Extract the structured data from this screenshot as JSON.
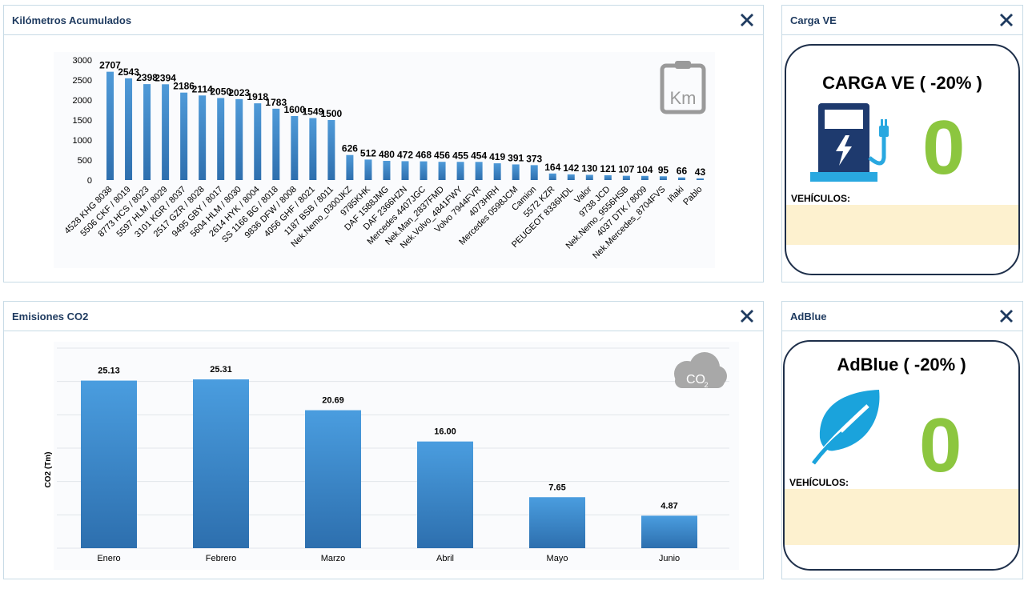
{
  "km_panel": {
    "title": "Kilómetros Acumulados",
    "icon_label": "Km",
    "chart_data": {
      "type": "bar",
      "categories": [
        "4528 KHG 8038",
        "5506 CKF / 8019",
        "8773 HCS / 8023",
        "5597 HLM / 8029",
        "3101 KGR / 8037",
        "2517 GZR / 8028",
        "9495 GBY / 8017",
        "5604 HLM / 8030",
        "2614 HYK / 8004",
        "SS 1166 BG / 8018",
        "9836 DFW / 8008",
        "4056 GHF / 8021",
        "1187 BSB / 8011",
        "Nek.Nemo_0300JKZ",
        "9785KHK",
        "DAF 1588JMG",
        "DAF 2366HZN",
        "Mercedes 4407JGC",
        "Nek.Man_2837FMD",
        "Nek.Volvo_4841FWY",
        "Volvo 7944FVR",
        "4073HRH",
        "Mercedes 0598JCM",
        "Camion",
        "5572 KZR",
        "PEUGEOT 8336HDL",
        "Valor",
        "9738 JCD",
        "Nek.Nemo_9556HSB",
        "4037 DTK / 8009",
        "Nek.Mercedes_8704FVS",
        "Iñaki",
        "Pablo"
      ],
      "values": [
        2707,
        2543,
        2398,
        2394,
        2186,
        2114,
        2050,
        2023,
        1918,
        1783,
        1600,
        1549,
        1500,
        626,
        512,
        480,
        472,
        468,
        456,
        455,
        454,
        419,
        391,
        373,
        164,
        142,
        130,
        121,
        107,
        104,
        95,
        66,
        43
      ],
      "yticks": [
        "0",
        "500",
        "1000",
        "1500",
        "2000",
        "2500",
        "3000"
      ],
      "ylim": [
        0,
        3000
      ],
      "bar_color": "#3d87c9"
    }
  },
  "co2_panel": {
    "title": "Emisiones CO2",
    "icon_label": "CO",
    "icon_sub": "2",
    "chart_data": {
      "type": "bar",
      "categories": [
        "Enero",
        "Febrero",
        "Marzo",
        "Abril",
        "Mayo",
        "Junio"
      ],
      "values": [
        25.13,
        25.31,
        20.69,
        16.0,
        7.65,
        4.87
      ],
      "labels": [
        "25.13",
        "25.31",
        "20.69",
        "16.00",
        "7.65",
        "4.87"
      ],
      "ylabel": "CO2 (Tm)",
      "ylim": [
        0,
        30
      ],
      "bar_color": "#3d87c9"
    }
  },
  "carga_panel": {
    "title": "Carga VE",
    "card_title": "CARGA VE ( -20% )",
    "value": "0",
    "vehicles_label": "VEHÍCULOS:"
  },
  "adblue_panel": {
    "title": "AdBlue",
    "card_title": "AdBlue ( -20% )",
    "value": "0",
    "vehicles_label": "VEHÍCULOS:"
  },
  "colors": {
    "title_text": "#1e3a5f",
    "close_icon": "#1e3a5f",
    "value_green": "#8cc63f",
    "vehicles_bg": "#fdf1cf"
  }
}
